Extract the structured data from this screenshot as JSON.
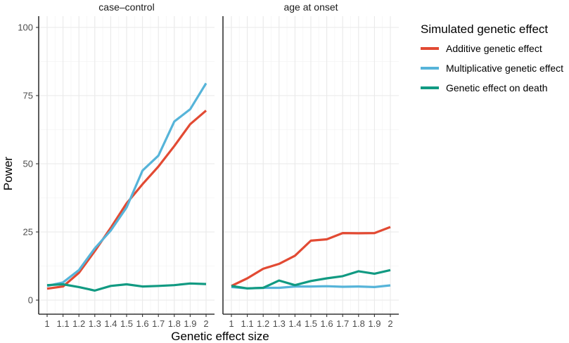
{
  "chart_data": {
    "type": "line",
    "panels": [
      {
        "title": "case–control",
        "series": [
          {
            "name": "Additive genetic effect",
            "values": [
              4.2,
              5.0,
              10.0,
              18.0,
              26.5,
              35.5,
              42.5,
              49.0,
              56.5,
              64.5,
              69.5
            ]
          },
          {
            "name": "Multiplicative genetic effect",
            "values": [
              5.2,
              6.5,
              11.0,
              19.0,
              25.5,
              34.0,
              47.5,
              53.0,
              65.5,
              70.0,
              79.5
            ]
          },
          {
            "name": "Genetic effect on death",
            "values": [
              5.5,
              5.8,
              4.8,
              3.5,
              5.2,
              5.8,
              5.0,
              5.2,
              5.5,
              6.1,
              5.9
            ]
          }
        ]
      },
      {
        "title": "age at onset",
        "series": [
          {
            "name": "Additive genetic effect",
            "values": [
              5.2,
              8.0,
              11.5,
              13.3,
              16.3,
              21.8,
              22.3,
              24.6,
              24.5,
              24.6,
              26.8
            ]
          },
          {
            "name": "Multiplicative genetic effect",
            "values": [
              4.8,
              4.3,
              4.5,
              4.5,
              5.0,
              5.0,
              5.1,
              4.9,
              5.0,
              4.8,
              5.4
            ]
          },
          {
            "name": "Genetic effect on death",
            "values": [
              5.2,
              4.3,
              4.5,
              7.2,
              5.5,
              7.0,
              8.0,
              8.8,
              10.6,
              9.7,
              11.0
            ]
          }
        ]
      }
    ],
    "x": [
      1,
      1.1,
      1.2,
      1.3,
      1.4,
      1.5,
      1.6,
      1.7,
      1.8,
      1.9,
      2
    ],
    "x_tick_labels": [
      "1",
      "1.1",
      "1.2",
      "1.3",
      "1.4",
      "1.5",
      "1.6",
      "1.7",
      "1.8",
      "1.9",
      "2"
    ],
    "xlabel": "Genetic effect size",
    "ylabel": "Power",
    "ylim": [
      0,
      100
    ],
    "y_ticks": [
      0,
      25,
      50,
      75,
      100
    ],
    "y_tick_labels": [
      "0",
      "25",
      "50",
      "75",
      "100"
    ],
    "grid": true,
    "legend": {
      "title": "Simulated genetic effect",
      "position": "right",
      "entries": [
        "Additive genetic effect",
        "Multiplicative genetic effect",
        "Genetic effect on death"
      ]
    },
    "colors": {
      "Additive genetic effect": "#E24A33",
      "Multiplicative genetic effect": "#56B4D9",
      "Genetic effect on death": "#119A82"
    }
  }
}
